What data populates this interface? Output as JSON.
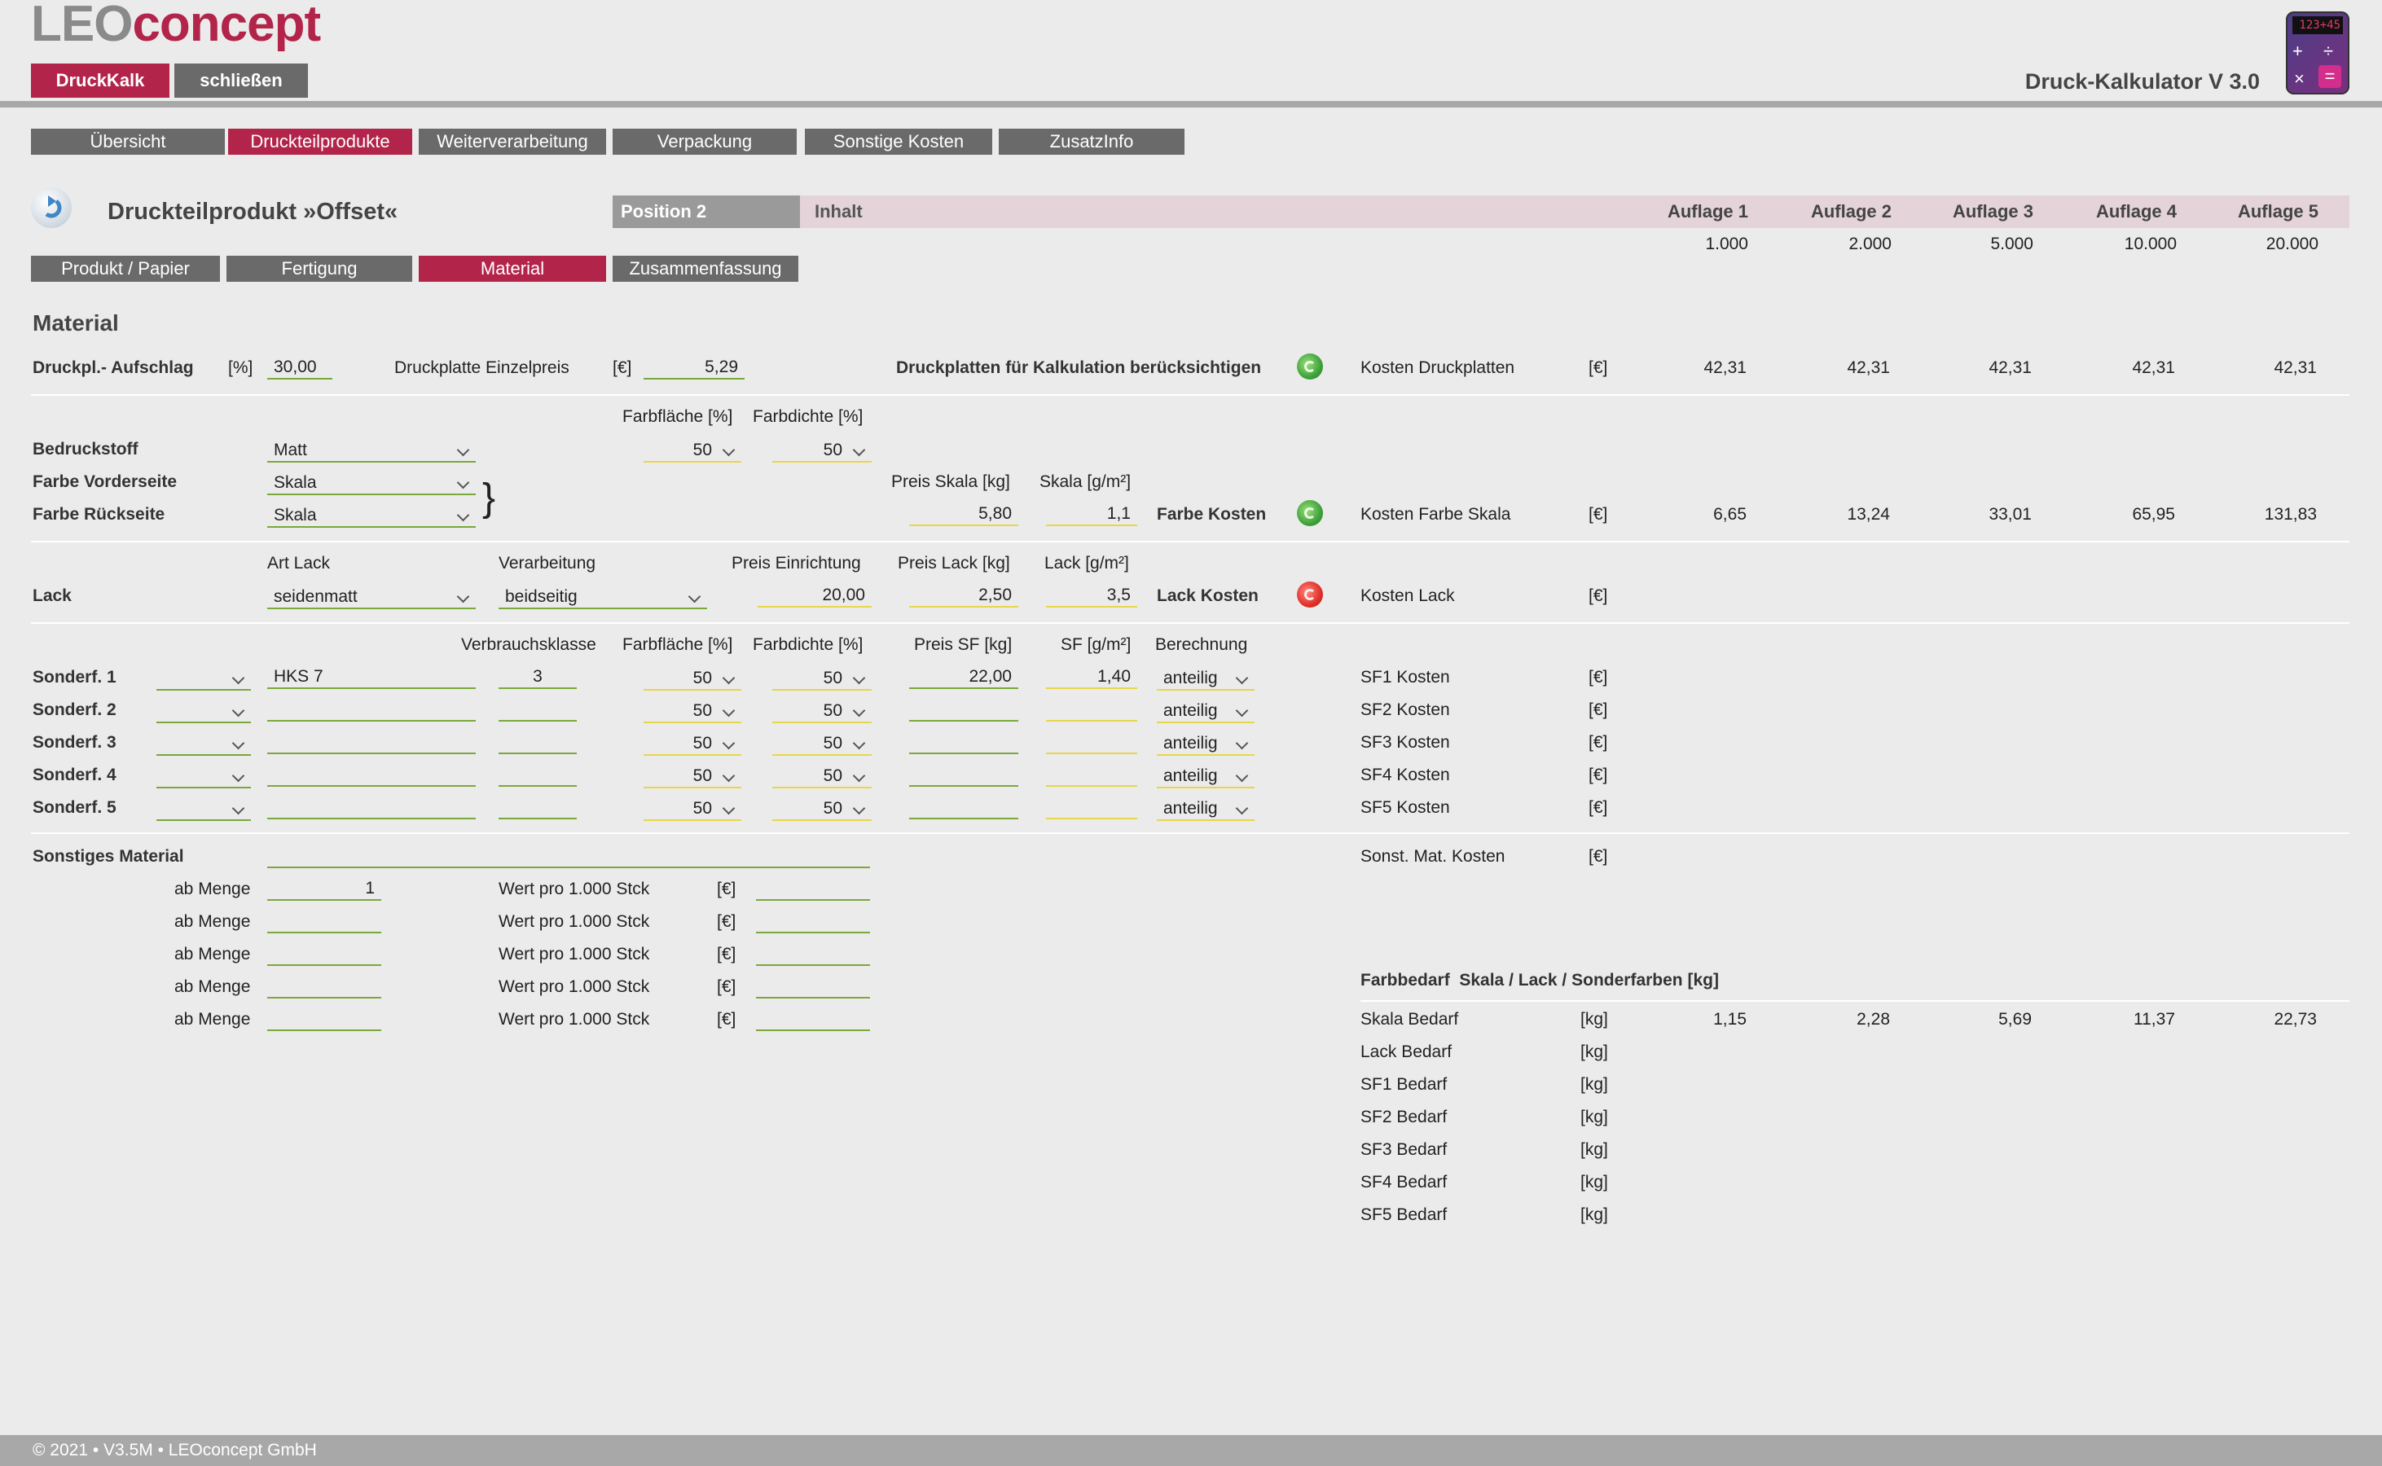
{
  "header": {
    "logo_leo": "LEO",
    "logo_concept": "concept",
    "btn_druckkalk": "DruckKalk",
    "btn_schliessen": "schließen",
    "app_title": "Druck-Kalkulator V 3.0",
    "calc_display": "123+45"
  },
  "main_tabs": [
    "Übersicht",
    "Druckteilprodukte",
    "Weiterverarbeitung",
    "Verpackung",
    "Sonstige Kosten",
    "ZusatzInfo"
  ],
  "product": {
    "title": "Druckteilprodukt »Offset«",
    "position": "Position 2",
    "inhalt": "Inhalt"
  },
  "sub_tabs": [
    "Produkt / Papier",
    "Fertigung",
    "Material",
    "Zusammenfassung"
  ],
  "auflagen": {
    "labels": [
      "Auflage 1",
      "Auflage 2",
      "Auflage 3",
      "Auflage 4",
      "Auflage 5"
    ],
    "values": [
      "1.000",
      "2.000",
      "5.000",
      "10.000",
      "20.000"
    ]
  },
  "section_title": "Material",
  "druckplatte": {
    "aufschlag_label": "Druckpl.- Aufschlag",
    "aufschlag_unit": "[%]",
    "aufschlag_value": "30,00",
    "einzelpreis_label": "Druckplatte Einzelpreis",
    "einzelpreis_unit": "[€]",
    "einzelpreis_value": "5,29",
    "beruecksichtigen_label": "Druckplatten für Kalkulation berücksichtigen",
    "kosten_label": "Kosten Druckplatten",
    "kosten_unit": "[€]",
    "kosten_values": [
      "42,31",
      "42,31",
      "42,31",
      "42,31",
      "42,31"
    ]
  },
  "farbe": {
    "col_farbflaeche": "Farbfläche [%]",
    "col_farbdichte": "Farbdichte [%]",
    "bedruckstoff_label": "Bedruckstoff",
    "bedruckstoff_value": "Matt",
    "ff_value": "50",
    "fd_value": "50",
    "vorderseite_label": "Farbe Vorderseite",
    "vorderseite_value": "Skala",
    "rueckseite_label": "Farbe Rückseite",
    "rueckseite_value": "Skala",
    "brace": "}",
    "preis_skala_label": "Preis Skala [kg]",
    "preis_skala_value": "5,80",
    "skala_gm2_label": "Skala [g/m²]",
    "skala_gm2_value": "1,1",
    "farbe_kosten_label": "Farbe Kosten",
    "kosten_label": "Kosten Farbe Skala",
    "kosten_unit": "[€]",
    "kosten_values": [
      "6,65",
      "13,24",
      "33,01",
      "65,95",
      "131,83"
    ]
  },
  "lack": {
    "art_lack_label": "Art Lack",
    "verarbeitung_label": "Verarbeitung",
    "preis_einrichtung_label": "Preis Einrichtung",
    "preis_lack_label": "Preis Lack [kg]",
    "lack_gm2_label": "Lack [g/m²]",
    "row_label": "Lack",
    "art_value": "seidenmatt",
    "verarbeitung_value": "beidseitig",
    "einrichtung_value": "20,00",
    "preis_value": "2,50",
    "gm2_value": "3,5",
    "lack_kosten_label": "Lack Kosten",
    "kosten_label": "Kosten Lack",
    "kosten_unit": "[€]"
  },
  "sonderfarben": {
    "col_verbrauchsklasse": "Verbrauchsklasse",
    "col_farbflaeche": "Farbfläche [%]",
    "col_farbdichte": "Farbdichte [%]",
    "col_preis_sf": "Preis SF [kg]",
    "col_sf_gm2": "SF [g/m²]",
    "col_berechnung": "Berechnung",
    "unit": "[€]",
    "rows": [
      {
        "label": "Sonderf. 1",
        "name": "HKS 7",
        "klasse": "3",
        "ff": "50",
        "fd": "50",
        "preis": "22,00",
        "gm2": "1,40",
        "berechnung": "anteilig",
        "kosten_label": "SF1 Kosten"
      },
      {
        "label": "Sonderf. 2",
        "name": "",
        "klasse": "",
        "ff": "50",
        "fd": "50",
        "preis": "",
        "gm2": "",
        "berechnung": "anteilig",
        "kosten_label": "SF2 Kosten"
      },
      {
        "label": "Sonderf. 3",
        "name": "",
        "klasse": "",
        "ff": "50",
        "fd": "50",
        "preis": "",
        "gm2": "",
        "berechnung": "anteilig",
        "kosten_label": "SF3 Kosten"
      },
      {
        "label": "Sonderf. 4",
        "name": "",
        "klasse": "",
        "ff": "50",
        "fd": "50",
        "preis": "",
        "gm2": "",
        "berechnung": "anteilig",
        "kosten_label": "SF4 Kosten"
      },
      {
        "label": "Sonderf. 5",
        "name": "",
        "klasse": "",
        "ff": "50",
        "fd": "50",
        "preis": "",
        "gm2": "",
        "berechnung": "anteilig",
        "kosten_label": "SF5 Kosten"
      }
    ]
  },
  "sonstiges": {
    "label": "Sonstiges Material",
    "kosten_label": "Sonst. Mat. Kosten",
    "kosten_unit": "[€]",
    "ab_menge_label": "ab Menge",
    "wert_label": "Wert pro 1.000 Stck",
    "wert_unit": "[€]",
    "rows": [
      {
        "menge": "1",
        "wert": ""
      },
      {
        "menge": "",
        "wert": ""
      },
      {
        "menge": "",
        "wert": ""
      },
      {
        "menge": "",
        "wert": ""
      },
      {
        "menge": "",
        "wert": ""
      }
    ]
  },
  "farbbedarf": {
    "title": "Farbbedarf  Skala / Lack / Sonderfarben [kg]",
    "unit": "[kg]",
    "rows": [
      {
        "label": "Skala Bedarf",
        "values": [
          "1,15",
          "2,28",
          "5,69",
          "11,37",
          "22,73"
        ]
      },
      {
        "label": "Lack Bedarf",
        "values": [
          "",
          "",
          "",
          "",
          ""
        ]
      },
      {
        "label": "SF1 Bedarf",
        "values": [
          "",
          "",
          "",
          "",
          ""
        ]
      },
      {
        "label": "SF2 Bedarf",
        "values": [
          "",
          "",
          "",
          "",
          ""
        ]
      },
      {
        "label": "SF3 Bedarf",
        "values": [
          "",
          "",
          "",
          "",
          ""
        ]
      },
      {
        "label": "SF4 Bedarf",
        "values": [
          "",
          "",
          "",
          "",
          ""
        ]
      },
      {
        "label": "SF5 Bedarf",
        "values": [
          "",
          "",
          "",
          "",
          ""
        ]
      }
    ]
  },
  "footer": "© 2021 • V3.5M • LEOconcept GmbH"
}
